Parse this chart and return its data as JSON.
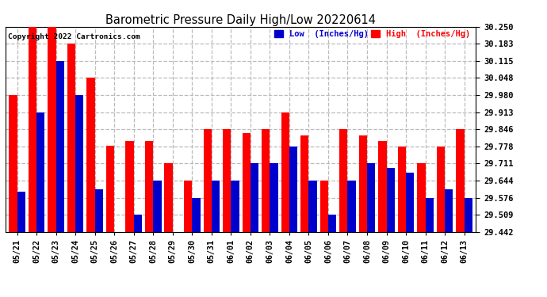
{
  "title": "Barometric Pressure Daily High/Low 20220614",
  "copyright": "Copyright 2022 Cartronics.com",
  "legend_low": "Low  (Inches/Hg)",
  "legend_high": "High  (Inches/Hg)",
  "dates": [
    "05/21",
    "05/22",
    "05/23",
    "05/24",
    "05/25",
    "05/26",
    "05/27",
    "05/28",
    "05/29",
    "05/30",
    "05/31",
    "06/01",
    "06/02",
    "06/03",
    "06/04",
    "06/05",
    "06/06",
    "06/07",
    "06/08",
    "06/09",
    "06/10",
    "06/11",
    "06/12",
    "06/13"
  ],
  "high_values": [
    29.98,
    30.25,
    30.25,
    30.183,
    30.048,
    29.78,
    29.8,
    29.8,
    29.711,
    29.644,
    29.846,
    29.846,
    29.83,
    29.846,
    29.913,
    29.82,
    29.644,
    29.846,
    29.82,
    29.8,
    29.778,
    29.711,
    29.778,
    29.846
  ],
  "low_values": [
    29.6,
    29.913,
    30.115,
    29.98,
    29.61,
    29.442,
    29.509,
    29.644,
    29.442,
    29.576,
    29.644,
    29.644,
    29.711,
    29.711,
    29.778,
    29.644,
    29.509,
    29.644,
    29.711,
    29.693,
    29.676,
    29.576,
    29.61,
    29.576
  ],
  "ymin": 29.442,
  "ymax": 30.25,
  "yticks": [
    29.442,
    29.509,
    29.576,
    29.644,
    29.711,
    29.778,
    29.846,
    29.913,
    29.98,
    30.048,
    30.115,
    30.183,
    30.25
  ],
  "bar_color_high": "#ff0000",
  "bar_color_low": "#0000cc",
  "bg_color": "#ffffff",
  "grid_color": "#bbbbbb",
  "title_color": "#000000",
  "copyright_color": "#000000"
}
